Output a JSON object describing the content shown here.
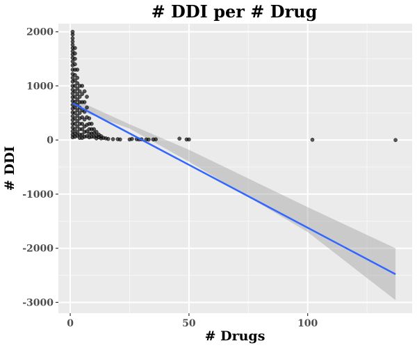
{
  "chart_data": {
    "type": "scatter",
    "title": "# DDI per # Drug",
    "xlabel": "# Drugs",
    "ylabel": "# DDI",
    "xlim": [
      -5,
      144
    ],
    "ylim": [
      -3200,
      2150
    ],
    "x_ticks": [
      0,
      50,
      100
    ],
    "x_tick_labels": [
      "0",
      "50",
      "100"
    ],
    "y_ticks": [
      2000,
      1000,
      0,
      -1000,
      -2000,
      -3000
    ],
    "y_tick_labels": [
      "2000",
      "1000",
      "0",
      "-1000",
      "-2000",
      "-3000"
    ],
    "grid": true,
    "legend": "none",
    "point_color": "#000000",
    "points": [
      [
        1,
        2000
      ],
      [
        1,
        1950
      ],
      [
        1,
        1880
      ],
      [
        1,
        1820
      ],
      [
        1,
        1760
      ],
      [
        1,
        1700
      ],
      [
        1,
        1640
      ],
      [
        1,
        1580
      ],
      [
        1,
        1520
      ],
      [
        1,
        1450
      ],
      [
        1,
        1380
      ],
      [
        1,
        1300
      ],
      [
        1,
        1220
      ],
      [
        1,
        1150
      ],
      [
        1,
        1080
      ],
      [
        1,
        1000
      ],
      [
        1,
        930
      ],
      [
        1,
        860
      ],
      [
        1,
        790
      ],
      [
        1,
        720
      ],
      [
        1,
        650
      ],
      [
        1,
        580
      ],
      [
        1,
        510
      ],
      [
        1,
        440
      ],
      [
        1,
        370
      ],
      [
        1,
        300
      ],
      [
        1,
        230
      ],
      [
        1,
        160
      ],
      [
        1,
        100
      ],
      [
        1,
        50
      ],
      [
        2,
        1700
      ],
      [
        2,
        1600
      ],
      [
        2,
        1500
      ],
      [
        2,
        1400
      ],
      [
        2,
        1300
      ],
      [
        2,
        1200
      ],
      [
        2,
        1100
      ],
      [
        2,
        1000
      ],
      [
        2,
        900
      ],
      [
        2,
        800
      ],
      [
        2,
        700
      ],
      [
        2,
        600
      ],
      [
        2,
        500
      ],
      [
        2,
        400
      ],
      [
        2,
        300
      ],
      [
        2,
        200
      ],
      [
        2,
        120
      ],
      [
        2,
        60
      ],
      [
        3,
        1300
      ],
      [
        3,
        1150
      ],
      [
        3,
        1050
      ],
      [
        3,
        950
      ],
      [
        3,
        850
      ],
      [
        3,
        750
      ],
      [
        3,
        650
      ],
      [
        3,
        550
      ],
      [
        3,
        450
      ],
      [
        3,
        350
      ],
      [
        3,
        250
      ],
      [
        3,
        150
      ],
      [
        3,
        80
      ],
      [
        4,
        1000
      ],
      [
        4,
        900
      ],
      [
        4,
        800
      ],
      [
        4,
        700
      ],
      [
        4,
        600
      ],
      [
        4,
        500
      ],
      [
        4,
        400
      ],
      [
        4,
        300
      ],
      [
        4,
        200
      ],
      [
        4,
        100
      ],
      [
        4,
        40
      ],
      [
        5,
        1000
      ],
      [
        5,
        850
      ],
      [
        5,
        700
      ],
      [
        5,
        550
      ],
      [
        5,
        420
      ],
      [
        5,
        300
      ],
      [
        5,
        200
      ],
      [
        5,
        100
      ],
      [
        5,
        40
      ],
      [
        6,
        900
      ],
      [
        6,
        700
      ],
      [
        6,
        520
      ],
      [
        6,
        380
      ],
      [
        6,
        250
      ],
      [
        6,
        150
      ],
      [
        6,
        60
      ],
      [
        7,
        800
      ],
      [
        7,
        600
      ],
      [
        7,
        420
      ],
      [
        7,
        280
      ],
      [
        7,
        160
      ],
      [
        7,
        70
      ],
      [
        8,
        400
      ],
      [
        8,
        300
      ],
      [
        8,
        200
      ],
      [
        8,
        120
      ],
      [
        8,
        50
      ],
      [
        9,
        300
      ],
      [
        9,
        200
      ],
      [
        9,
        120
      ],
      [
        9,
        60
      ],
      [
        10,
        200
      ],
      [
        10,
        130
      ],
      [
        10,
        60
      ],
      [
        11,
        150
      ],
      [
        11,
        80
      ],
      [
        11,
        30
      ],
      [
        12,
        100
      ],
      [
        12,
        50
      ],
      [
        13,
        70
      ],
      [
        13,
        30
      ],
      [
        14,
        40
      ],
      [
        15,
        30
      ],
      [
        16,
        20
      ],
      [
        18,
        15
      ],
      [
        20,
        15
      ],
      [
        21,
        10
      ],
      [
        25,
        10
      ],
      [
        26,
        20
      ],
      [
        28,
        15
      ],
      [
        29,
        10
      ],
      [
        30,
        12
      ],
      [
        32,
        10
      ],
      [
        33,
        8
      ],
      [
        35,
        10
      ],
      [
        36,
        12
      ],
      [
        46,
        25
      ],
      [
        49,
        10
      ],
      [
        50,
        10
      ],
      [
        102,
        5
      ],
      [
        137,
        0
      ]
    ],
    "fit_line": {
      "x": [
        1,
        137
      ],
      "y": [
        680,
        -2480
      ],
      "color": "#3366ff"
    },
    "confidence_band": {
      "x": [
        1,
        25,
        50,
        100,
        137
      ],
      "upper": [
        770,
        290,
        -180,
        -1240,
        -2000
      ],
      "lower": [
        590,
        210,
        -400,
        -1700,
        -2960
      ]
    }
  }
}
